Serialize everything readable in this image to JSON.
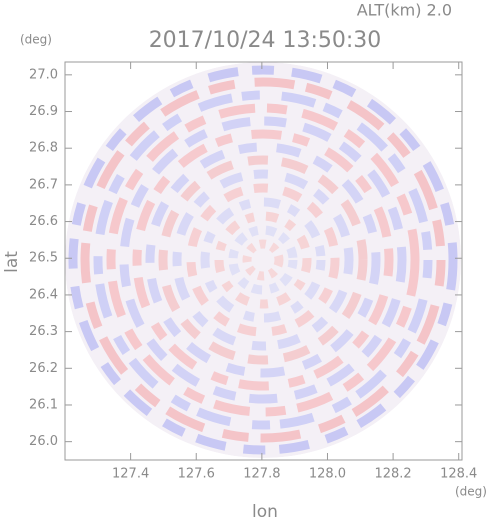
{
  "chart_data": {
    "type": "ppi",
    "title": "2017/10/24 13:50:30",
    "altitude_label": "ALT(km) 2.0",
    "x_label": "lon",
    "y_label": "lat",
    "x_unit": "(deg)",
    "y_unit": "(deg)",
    "xlim": [
      127.2,
      128.41
    ],
    "ylim": [
      25.95,
      27.035
    ],
    "xticks": [
      127.4,
      127.6,
      127.8,
      {
        "value": 128.0,
        "label": "128.0"
      },
      128.2,
      128.4
    ],
    "yticks": [
      {
        "value": 26.0,
        "label": "26.0"
      },
      26.1,
      26.2,
      26.3,
      26.4,
      26.5,
      26.6,
      26.7,
      26.8,
      26.9,
      {
        "value": 27.0,
        "label": "27.0"
      }
    ]
  }
}
